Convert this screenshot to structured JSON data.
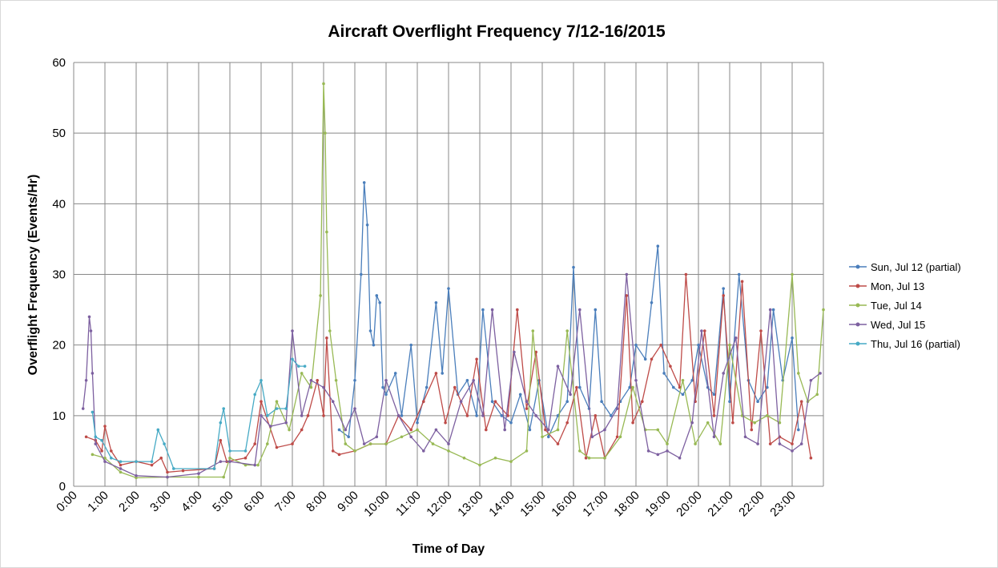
{
  "chart_data": {
    "type": "line",
    "title": "Aircraft Overflight Frequency 7/12-16/2015",
    "x_label": "Time of Day",
    "y_label": "Overflight Frequency  (Events/Hr)",
    "xlim": [
      0,
      24
    ],
    "ylim": [
      0,
      60
    ],
    "yticks": [
      0,
      10,
      20,
      30,
      40,
      50,
      60
    ],
    "xticks": [
      {
        "value": 0,
        "label": "0:00"
      },
      {
        "value": 1,
        "label": "1:00"
      },
      {
        "value": 2,
        "label": "2:00"
      },
      {
        "value": 3,
        "label": "3:00"
      },
      {
        "value": 4,
        "label": "4:00"
      },
      {
        "value": 5,
        "label": "5:00"
      },
      {
        "value": 6,
        "label": "6:00"
      },
      {
        "value": 7,
        "label": "7:00"
      },
      {
        "value": 8,
        "label": "8:00"
      },
      {
        "value": 9,
        "label": "9:00"
      },
      {
        "value": 10,
        "label": "10:00"
      },
      {
        "value": 11,
        "label": "11:00"
      },
      {
        "value": 12,
        "label": "12:00"
      },
      {
        "value": 13,
        "label": "13:00"
      },
      {
        "value": 14,
        "label": "14:00"
      },
      {
        "value": 15,
        "label": "15:00"
      },
      {
        "value": 16,
        "label": "16:00"
      },
      {
        "value": 17,
        "label": "17:00"
      },
      {
        "value": 18,
        "label": "18:00"
      },
      {
        "value": 19,
        "label": "19:00"
      },
      {
        "value": 20,
        "label": "20:00"
      },
      {
        "value": 21,
        "label": "21:00"
      },
      {
        "value": 22,
        "label": "22:00"
      },
      {
        "value": 23,
        "label": "23:00"
      }
    ],
    "grid": true,
    "legend": "right",
    "series": [
      {
        "name": "Sun, Jul 12 (partial)",
        "color": "#4a7ebb",
        "x": [
          8.5,
          8.8,
          9.0,
          9.2,
          9.3,
          9.4,
          9.5,
          9.6,
          9.7,
          9.8,
          9.9,
          10.0,
          10.3,
          10.5,
          10.8,
          11.0,
          11.3,
          11.6,
          11.8,
          12.0,
          12.3,
          12.6,
          12.9,
          13.1,
          13.4,
          13.7,
          14.0,
          14.3,
          14.6,
          14.9,
          15.2,
          15.5,
          15.8,
          16.0,
          16.2,
          16.5,
          16.7,
          16.9,
          17.2,
          17.5,
          17.8,
          18.0,
          18.3,
          18.5,
          18.7,
          18.9,
          19.2,
          19.5,
          19.8,
          20.0,
          20.3,
          20.5,
          20.8,
          21.0,
          21.3,
          21.6,
          21.9,
          22.2,
          22.4,
          22.7,
          23.0,
          23.2
        ],
        "values": [
          8,
          7,
          15,
          30,
          43,
          37,
          22,
          20,
          27,
          26,
          14,
          13,
          16,
          10,
          20,
          9,
          14,
          26,
          16,
          28,
          13,
          15,
          10,
          25,
          12,
          10,
          9,
          13,
          8,
          15,
          7,
          10,
          12,
          31,
          14,
          11,
          25,
          12,
          10,
          12,
          14,
          20,
          18,
          26,
          34,
          16,
          14,
          13,
          15,
          20,
          14,
          13,
          28,
          12,
          30,
          15,
          12,
          14,
          25,
          15,
          21,
          8
        ]
      },
      {
        "name": "Mon, Jul 13",
        "color": "#be4b48",
        "x": [
          0.4,
          0.7,
          0.9,
          1.0,
          1.2,
          1.5,
          2.0,
          2.5,
          2.8,
          3.0,
          3.5,
          4.5,
          4.7,
          4.9,
          5.5,
          5.8,
          6.0,
          6.5,
          7.0,
          7.3,
          7.5,
          7.8,
          8.0,
          8.1,
          8.3,
          8.5,
          9.0,
          9.5,
          10.0,
          10.4,
          10.8,
          11.2,
          11.6,
          11.9,
          12.2,
          12.6,
          12.9,
          13.2,
          13.5,
          13.9,
          14.2,
          14.5,
          14.8,
          15.1,
          15.5,
          15.8,
          16.1,
          16.4,
          16.7,
          17.0,
          17.4,
          17.7,
          17.9,
          18.2,
          18.5,
          18.8,
          19.1,
          19.4,
          19.6,
          19.9,
          20.2,
          20.5,
          20.8,
          21.1,
          21.4,
          21.7,
          22.0,
          22.3,
          22.6,
          23.0,
          23.3,
          23.6
        ],
        "values": [
          7,
          6.5,
          5,
          8.5,
          5,
          3,
          3.5,
          3,
          4,
          2,
          2.2,
          2.5,
          6.5,
          3.5,
          4,
          6,
          12,
          5.5,
          6,
          8,
          10,
          15,
          10,
          21,
          5,
          4.5,
          5,
          6,
          6,
          10,
          8,
          12,
          16,
          9,
          14,
          10,
          18,
          8,
          12,
          10,
          25,
          11,
          19,
          8,
          6,
          9,
          14,
          4,
          10,
          4,
          7,
          27,
          9,
          12,
          18,
          20,
          17,
          14,
          30,
          12,
          22,
          10,
          27,
          9,
          29,
          8,
          22,
          6,
          7,
          6,
          12,
          4
        ]
      },
      {
        "name": "Tue, Jul 14",
        "color": "#98b954",
        "x": [
          0.6,
          1.0,
          1.5,
          2.0,
          3.0,
          4.0,
          4.8,
          5.0,
          5.5,
          5.9,
          6.2,
          6.5,
          6.9,
          7.3,
          7.6,
          7.9,
          8.0,
          8.05,
          8.1,
          8.2,
          8.4,
          8.7,
          9.0,
          9.5,
          10.0,
          10.5,
          11.0,
          11.5,
          12.0,
          12.5,
          13.0,
          13.5,
          14.0,
          14.5,
          14.7,
          15.0,
          15.5,
          15.8,
          16.2,
          16.5,
          17.0,
          17.5,
          17.9,
          18.3,
          18.7,
          19.0,
          19.5,
          19.9,
          20.3,
          20.7,
          21.0,
          21.4,
          21.8,
          22.2,
          22.6,
          23.0,
          23.2,
          23.5,
          23.8,
          24.0
        ],
        "values": [
          4.5,
          4,
          2,
          1.2,
          1.3,
          1.3,
          1.3,
          4,
          3,
          3,
          6,
          12,
          8,
          16,
          14,
          27,
          57,
          50,
          36,
          22,
          15,
          6,
          5,
          6,
          6,
          7,
          8,
          6,
          5,
          4,
          3,
          4,
          3.5,
          5,
          22,
          7,
          8,
          22,
          5,
          4,
          4,
          7,
          14,
          8,
          8,
          6,
          15,
          6,
          9,
          6,
          20,
          10,
          9,
          10,
          9,
          30,
          16,
          12,
          13,
          25
        ]
      },
      {
        "name": "Wed, Jul 15",
        "color": "#7d60a0",
        "x": [
          0.3,
          0.4,
          0.5,
          0.55,
          0.6,
          0.7,
          1.0,
          1.5,
          2.0,
          3.0,
          4.0,
          4.7,
          5.0,
          5.8,
          6.0,
          6.3,
          6.8,
          7.0,
          7.3,
          7.6,
          8.0,
          8.3,
          8.7,
          9.0,
          9.3,
          9.7,
          10.0,
          10.4,
          10.8,
          11.2,
          11.6,
          12.0,
          12.4,
          12.8,
          13.1,
          13.4,
          13.8,
          14.1,
          14.5,
          14.8,
          15.2,
          15.5,
          15.9,
          16.2,
          16.6,
          17.0,
          17.4,
          17.7,
          18.0,
          18.4,
          18.7,
          19.0,
          19.4,
          19.8,
          20.1,
          20.5,
          20.8,
          21.2,
          21.5,
          21.9,
          22.3,
          22.6,
          23.0,
          23.3,
          23.6,
          23.9
        ],
        "values": [
          11,
          15,
          24,
          22,
          16,
          6,
          3.5,
          2.5,
          1.5,
          1.3,
          1.8,
          3.5,
          3.5,
          3,
          10,
          8.5,
          9,
          22,
          10,
          15,
          14,
          12,
          8,
          11,
          6,
          7,
          15,
          10,
          7,
          5,
          8,
          6,
          12,
          15,
          10,
          25,
          8,
          19,
          12,
          10,
          8,
          17,
          13,
          25,
          7,
          8,
          11,
          30,
          15,
          5,
          4.5,
          5,
          4,
          9,
          22,
          7,
          16,
          21,
          7,
          6,
          25,
          6,
          5,
          6,
          15,
          16
        ]
      },
      {
        "name": "Thu, Jul 16 (partial)",
        "color": "#46aac5",
        "x": [
          0.6,
          0.7,
          0.9,
          1.2,
          1.5,
          2.0,
          2.5,
          2.7,
          2.9,
          3.2,
          4.5,
          4.7,
          4.8,
          5.0,
          5.5,
          5.8,
          6.0,
          6.2,
          6.5,
          6.8,
          7.0,
          7.2,
          7.4
        ],
        "values": [
          10.5,
          7,
          6.5,
          4,
          3.5,
          3.5,
          3.5,
          8,
          6,
          2.5,
          2.5,
          9,
          11,
          5,
          5,
          13,
          15,
          10,
          11,
          11,
          18,
          17,
          17
        ]
      }
    ]
  }
}
